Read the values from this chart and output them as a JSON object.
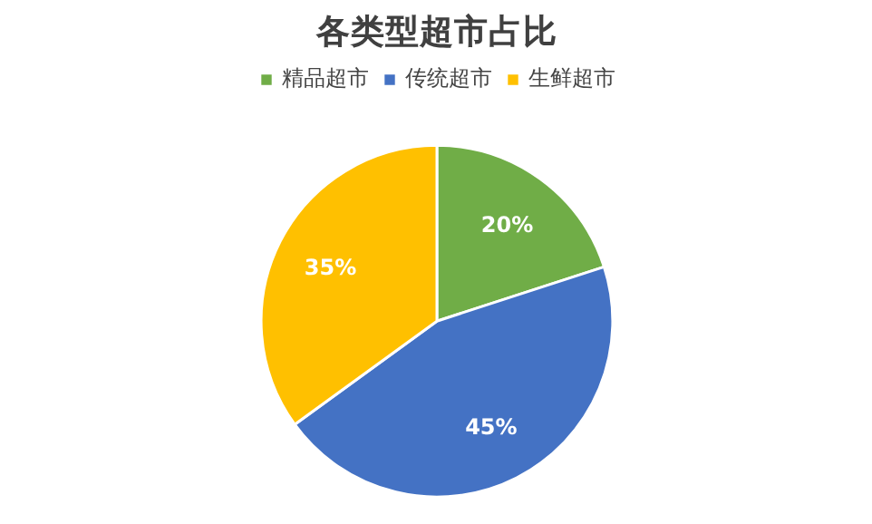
{
  "chart_data": {
    "type": "pie",
    "title": "各类型超市占比",
    "categories": [
      "精品超市",
      "传统超市",
      "生鲜超市"
    ],
    "values": [
      20,
      45,
      35
    ],
    "colors": [
      "#70ad47",
      "#4472c4",
      "#ffc000"
    ],
    "value_labels": [
      "20%",
      "45%",
      "35%"
    ],
    "legend": "top"
  }
}
